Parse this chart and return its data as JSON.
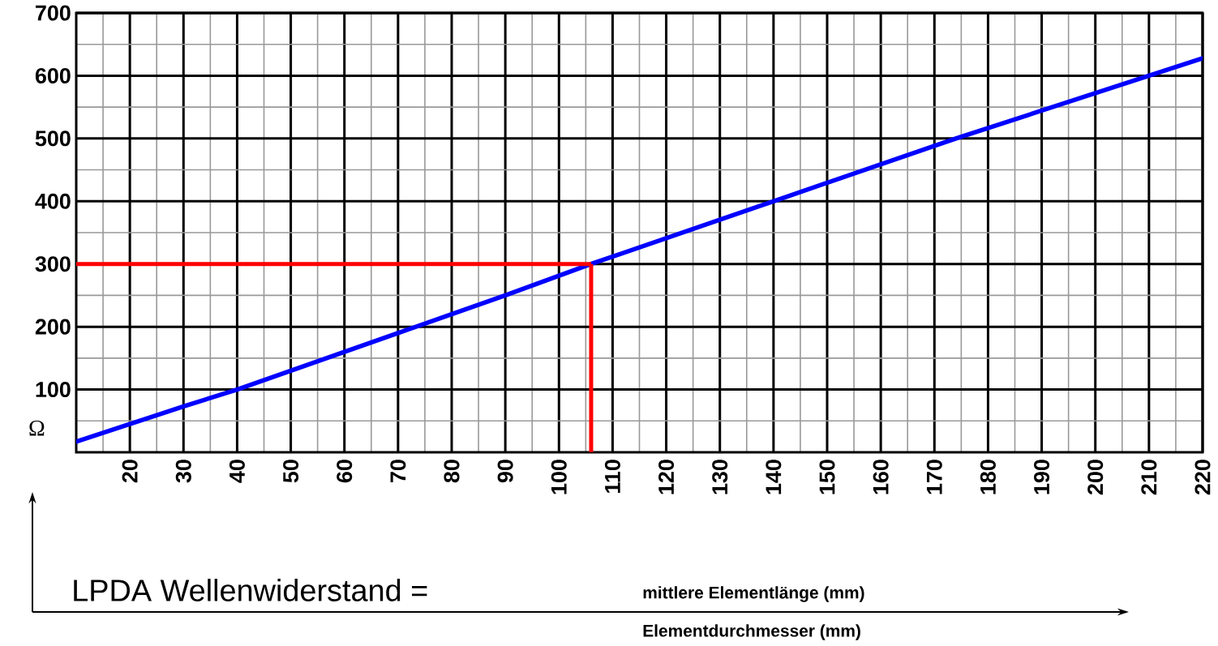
{
  "chart_data": {
    "type": "line",
    "ylabel": "Ω",
    "xlim": [
      10,
      220
    ],
    "ylim": [
      0,
      700
    ],
    "xticks": [
      20,
      30,
      40,
      50,
      60,
      70,
      80,
      90,
      100,
      110,
      120,
      130,
      140,
      150,
      160,
      170,
      180,
      190,
      200,
      210,
      220
    ],
    "yticks": [
      100,
      200,
      300,
      400,
      500,
      600,
      700
    ],
    "grid": true,
    "series": [
      {
        "color": "#0000ff",
        "x": [
          10,
          20,
          30,
          40,
          50,
          60,
          70,
          80,
          90,
          106,
          140,
          174,
          210,
          220
        ],
        "values": [
          17,
          45,
          73,
          100,
          130,
          160,
          190,
          220,
          250,
          300,
          400,
          500,
          600,
          628
        ]
      }
    ],
    "ref_lines": [
      {
        "axis": "y",
        "value": 300,
        "color": "#ff0000"
      },
      {
        "axis": "x",
        "value": 106,
        "color": "#ff0000"
      }
    ],
    "annotations": [
      "LPDA Wellenwiderstand =",
      "mittlere Elementlänge  (mm)",
      "Elementdurchmesser   (mm)"
    ]
  }
}
